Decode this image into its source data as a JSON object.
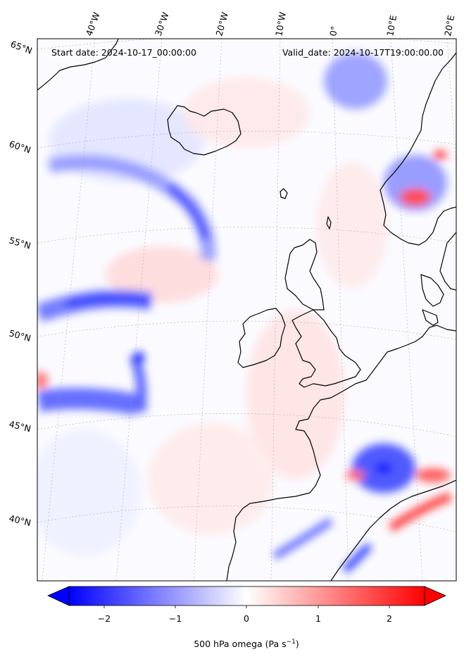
{
  "header": {
    "start_date": "Start date: 2024-10-17_00:00:00",
    "valid_date": "Valid_date: 2024-10-17T19:00:00.00"
  },
  "map": {
    "projection": "conic",
    "longitude_labels": [
      "40°W",
      "30°W",
      "20°W",
      "10°W",
      "0°",
      "10°E",
      "20°E"
    ],
    "latitude_labels": [
      "65°N",
      "60°N",
      "55°N",
      "50°N",
      "45°N",
      "40°N"
    ],
    "field": "500 hPa vertical velocity (omega)",
    "gridlines": true,
    "coastlines": true
  },
  "colorbar": {
    "ticks": [
      "−2",
      "−1",
      "0",
      "1",
      "2"
    ],
    "tick_values": [
      -2,
      -1,
      0,
      1,
      2
    ],
    "range": [
      -2.5,
      2.5
    ],
    "extend": "both",
    "colormap": "bwr",
    "label": "500 hPa omega (Pa s",
    "label_sup": "−1",
    "label_close": ")",
    "color_low": "#0000ff",
    "color_mid": "#ffffff",
    "color_high": "#ff0000"
  }
}
